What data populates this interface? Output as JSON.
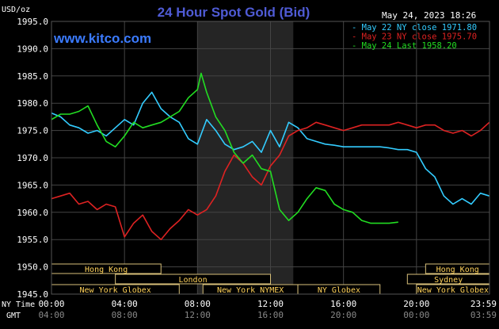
{
  "header": {
    "unit_label": "USD/oz",
    "title": "24 Hour Spot Gold (Bid)",
    "timestamp": "May 24, 2023 18:26",
    "watermark": "www.kitco.com"
  },
  "colors": {
    "background": "#000000",
    "grid": "#444444",
    "axis_text": "#ffffff",
    "title": "#4f5bd5",
    "watermark": "#3b7bff",
    "shade": "#252525",
    "session_label": "#ffd25a",
    "session_bg": "#000000",
    "session_border": "#d8c07a"
  },
  "chart_data": {
    "type": "line",
    "title": "24 Hour Spot Gold (Bid)",
    "ylabel": "USD/oz",
    "ylim": [
      1945,
      1995
    ],
    "yticks": [
      "1995.0",
      "1990.0",
      "1985.0",
      "1980.0",
      "1975.0",
      "1970.0",
      "1965.0",
      "1960.0",
      "1955.0",
      "1950.0",
      "1945.0"
    ],
    "ytick_values": [
      1995,
      1990,
      1985,
      1980,
      1975,
      1970,
      1965,
      1960,
      1955,
      1950,
      1945
    ],
    "xlim": [
      0,
      24
    ],
    "nytime_label": "NY Time",
    "gmt_label": "GMT",
    "xticks_ny": [
      "00:00",
      "04:00",
      "08:00",
      "12:00",
      "16:00",
      "20:00",
      "23:59"
    ],
    "xticks_gmt": [
      "04:00",
      "08:00",
      "12:00",
      "16:00",
      "20:00",
      "00:00",
      "03:59"
    ],
    "xtick_hours": [
      0,
      4,
      8,
      12,
      16,
      20,
      24
    ],
    "highlight_range": [
      8.0,
      13.25
    ],
    "grid": true,
    "legend_position": "top-right",
    "series": [
      {
        "name": "May 22 NY close 1971.80",
        "color": "#33ccff",
        "x": [
          0,
          0.5,
          1.0,
          1.5,
          2.0,
          2.5,
          3.0,
          3.5,
          4.0,
          4.5,
          5.0,
          5.5,
          6.0,
          6.5,
          7.0,
          7.5,
          8.0,
          8.5,
          9.0,
          9.5,
          10.0,
          10.5,
          11.0,
          11.5,
          12.0,
          12.5,
          13.0,
          13.5,
          14.0,
          14.5,
          15.0,
          15.5,
          16.0,
          16.5,
          17.0,
          17.5,
          18.0,
          18.5,
          19.0,
          19.5,
          20.0,
          20.5,
          21.0,
          21.5,
          22.0,
          22.5,
          23.0,
          23.5,
          23.99
        ],
        "values": [
          1978.2,
          1977.5,
          1976.0,
          1975.5,
          1974.5,
          1975.0,
          1974.0,
          1975.5,
          1977.0,
          1976.0,
          1980.0,
          1982.0,
          1979.0,
          1977.5,
          1976.5,
          1973.5,
          1972.5,
          1977.0,
          1975.0,
          1972.5,
          1971.5,
          1972.0,
          1973.0,
          1971.0,
          1975.0,
          1972.0,
          1976.5,
          1975.5,
          1973.5,
          1973.0,
          1972.5,
          1972.3,
          1972.0,
          1972.0,
          1972.0,
          1972.0,
          1972.0,
          1971.8,
          1971.5,
          1971.5,
          1971.0,
          1968.0,
          1966.5,
          1963.0,
          1961.5,
          1962.5,
          1961.5,
          1963.5,
          1963.0
        ]
      },
      {
        "name": "May 23 NY close 1975.70",
        "color": "#dd2222",
        "x": [
          0,
          0.5,
          1.0,
          1.5,
          2.0,
          2.5,
          3.0,
          3.5,
          4.0,
          4.5,
          5.0,
          5.5,
          6.0,
          6.5,
          7.0,
          7.5,
          8.0,
          8.5,
          9.0,
          9.5,
          10.0,
          10.5,
          11.0,
          11.5,
          12.0,
          12.5,
          13.0,
          13.5,
          14.0,
          14.5,
          15.0,
          15.5,
          16.0,
          16.5,
          17.0,
          17.5,
          18.0,
          18.5,
          19.0,
          19.5,
          20.0,
          20.5,
          21.0,
          21.5,
          22.0,
          22.5,
          23.0,
          23.5,
          23.99
        ],
        "values": [
          1962.5,
          1963.0,
          1963.5,
          1961.5,
          1962.0,
          1960.5,
          1961.5,
          1961.0,
          1955.5,
          1958.0,
          1959.5,
          1956.5,
          1955.0,
          1957.0,
          1958.5,
          1960.5,
          1959.5,
          1960.5,
          1963.0,
          1967.5,
          1970.5,
          1969.0,
          1966.5,
          1965.0,
          1968.5,
          1970.5,
          1974.0,
          1975.0,
          1975.5,
          1976.5,
          1976.0,
          1975.5,
          1975.0,
          1975.5,
          1976.0,
          1976.0,
          1976.0,
          1976.0,
          1976.5,
          1976.0,
          1975.5,
          1976.0,
          1976.0,
          1975.0,
          1974.5,
          1975.0,
          1974.0,
          1975.0,
          1976.5
        ]
      },
      {
        "name": "May 24 Last 1958.20",
        "color": "#22dd22",
        "x": [
          0,
          0.5,
          1.0,
          1.5,
          2.0,
          2.5,
          3.0,
          3.5,
          4.0,
          4.5,
          5.0,
          5.5,
          6.0,
          6.5,
          7.0,
          7.5,
          8.0,
          8.2,
          8.5,
          9.0,
          9.5,
          10.0,
          10.5,
          11.0,
          11.5,
          12.0,
          12.5,
          13.0,
          13.5,
          14.0,
          14.5,
          15.0,
          15.5,
          16.0,
          16.5,
          17.0,
          17.5,
          18.0,
          18.5,
          19.0
        ],
        "values": [
          1977.0,
          1978.0,
          1978.0,
          1978.5,
          1979.5,
          1976.0,
          1973.0,
          1972.0,
          1974.0,
          1976.5,
          1975.5,
          1976.0,
          1976.5,
          1977.5,
          1978.5,
          1981.0,
          1982.5,
          1985.5,
          1982.0,
          1977.5,
          1975.0,
          1971.0,
          1969.0,
          1970.5,
          1968.0,
          1967.5,
          1960.5,
          1958.5,
          1960.0,
          1962.5,
          1964.5,
          1964.0,
          1961.5,
          1960.5,
          1960.0,
          1958.5,
          1958.0,
          1958.0,
          1958.0,
          1958.2
        ]
      }
    ],
    "sessions": [
      {
        "name": "Hong Kong",
        "row": 0,
        "start": 0.0,
        "end": 6.0
      },
      {
        "name": "Hong Kong",
        "row": 0,
        "start": 20.5,
        "end": 24.0
      },
      {
        "name": "London",
        "row": 1,
        "start": 3.5,
        "end": 12.0
      },
      {
        "name": "Sydney",
        "row": 1,
        "start": 19.5,
        "end": 24.0
      },
      {
        "name": "New York Globex",
        "row": 2,
        "start": 0.0,
        "end": 7.0
      },
      {
        "name": "New York NYMEX",
        "row": 2,
        "start": 8.3,
        "end": 13.5
      },
      {
        "name": "NY Globex",
        "row": 2,
        "start": 13.5,
        "end": 18.0
      },
      {
        "name": "New York Globex",
        "row": 2,
        "start": 20.0,
        "end": 24.0
      }
    ]
  }
}
